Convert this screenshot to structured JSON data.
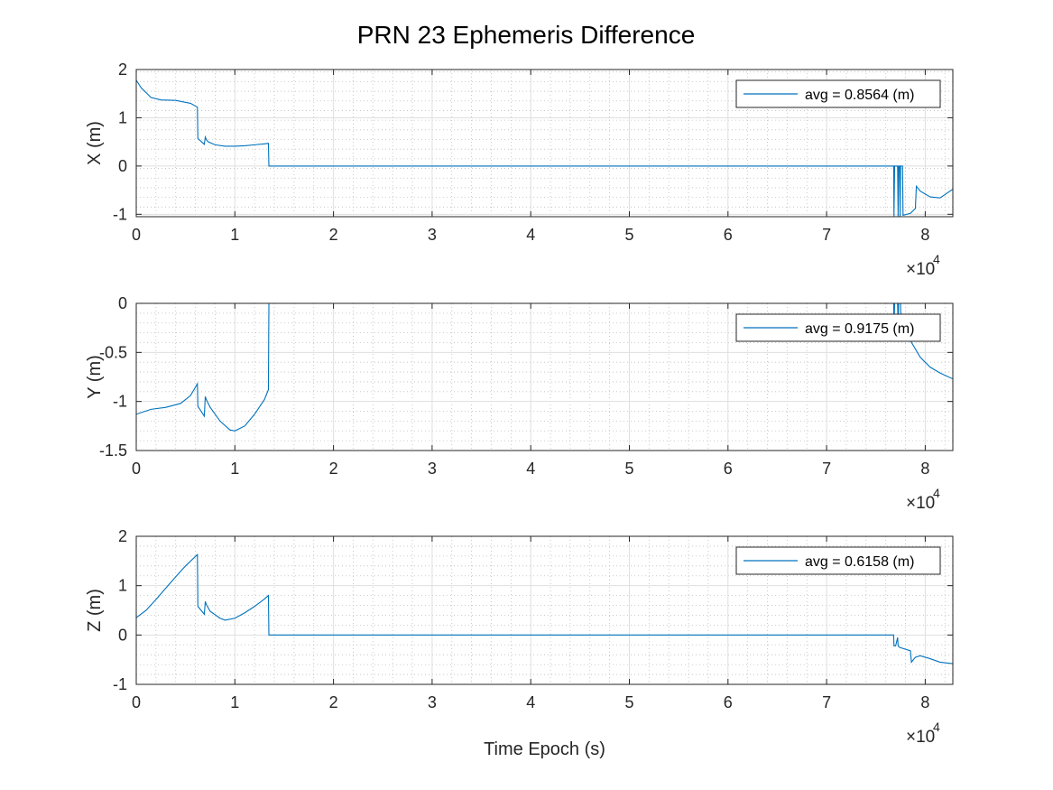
{
  "title": "PRN 23 Ephemeris Difference",
  "colors": {
    "line": "#0072bd",
    "axis": "#262626",
    "grid_major": "#dfdfdf",
    "grid_minor": "#bdbdbd"
  },
  "chart_data": [
    {
      "type": "line",
      "ylabel": "X (m)",
      "xlabel": "",
      "xlim": [
        0,
        82800
      ],
      "ylim": [
        -1.05,
        2
      ],
      "x_ticks": [
        0,
        10000,
        20000,
        30000,
        40000,
        50000,
        60000,
        70000,
        80000
      ],
      "x_tick_labels": [
        "0",
        "1",
        "2",
        "3",
        "4",
        "5",
        "6",
        "7",
        "8"
      ],
      "x_exponent": "×10",
      "x_exponent_power": "4",
      "y_ticks": [
        -1,
        0,
        1,
        2
      ],
      "y_tick_labels": [
        "-1",
        "0",
        "1",
        "2"
      ],
      "grid": true,
      "legend_position": "top-right",
      "series": [
        {
          "name": "avg = 0.8564 (m)",
          "x": [
            0,
            500,
            1500,
            2500,
            4000,
            5500,
            6200,
            6250,
            6900,
            7000,
            7100,
            7300,
            8000,
            9000,
            10000,
            11000,
            12000,
            13000,
            13400,
            13450,
            76800,
            76830,
            76900,
            77200,
            77250,
            77300,
            77400,
            77450,
            77500,
            77700,
            77750,
            78500,
            79000,
            79100,
            79500,
            80500,
            81500,
            82800
          ],
          "y": [
            1.78,
            1.62,
            1.42,
            1.37,
            1.36,
            1.3,
            1.22,
            0.57,
            0.45,
            0.6,
            0.55,
            0.5,
            0.44,
            0.41,
            0.41,
            0.42,
            0.44,
            0.46,
            0.47,
            0,
            0,
            -1.05,
            0,
            0,
            -1.05,
            0,
            0,
            -1.05,
            0,
            0,
            -1.02,
            -0.98,
            -0.88,
            -0.42,
            -0.52,
            -0.64,
            -0.66,
            -0.48
          ]
        }
      ]
    },
    {
      "type": "line",
      "ylabel": "Y (m)",
      "xlabel": "",
      "xlim": [
        0,
        82800
      ],
      "ylim": [
        -1.5,
        0
      ],
      "x_ticks": [
        0,
        10000,
        20000,
        30000,
        40000,
        50000,
        60000,
        70000,
        80000
      ],
      "x_tick_labels": [
        "0",
        "1",
        "2",
        "3",
        "4",
        "5",
        "6",
        "7",
        "8"
      ],
      "x_exponent": "×10",
      "x_exponent_power": "4",
      "y_ticks": [
        -1.5,
        -1,
        -0.5,
        0
      ],
      "y_tick_labels": [
        "-1.5",
        "-1",
        "-0.5",
        "0"
      ],
      "grid": true,
      "legend_position": "top-right",
      "series": [
        {
          "name": "avg = 0.9175 (m)",
          "x": [
            0,
            1500,
            3000,
            4500,
            5500,
            6200,
            6250,
            6900,
            7000,
            7100,
            7500,
            8500,
            9500,
            10000,
            11000,
            12000,
            13000,
            13400,
            13450,
            76800,
            76830,
            76900,
            77200,
            77250,
            77300,
            77500,
            77550,
            78500,
            79500,
            80500,
            81500,
            82800
          ],
          "y": [
            -1.13,
            -1.08,
            -1.06,
            -1.02,
            -0.94,
            -0.82,
            -1.05,
            -1.15,
            -0.95,
            -0.98,
            -1.06,
            -1.2,
            -1.29,
            -1.3,
            -1.25,
            -1.13,
            -0.98,
            -0.88,
            0,
            0,
            -0.25,
            0,
            0,
            -0.3,
            0,
            0,
            -0.35,
            -0.38,
            -0.55,
            -0.65,
            -0.71,
            -0.77
          ]
        }
      ]
    },
    {
      "type": "line",
      "ylabel": "Z (m)",
      "xlabel": "Time Epoch (s)",
      "xlim": [
        0,
        82800
      ],
      "ylim": [
        -1,
        2
      ],
      "x_ticks": [
        0,
        10000,
        20000,
        30000,
        40000,
        50000,
        60000,
        70000,
        80000
      ],
      "x_tick_labels": [
        "0",
        "1",
        "2",
        "3",
        "4",
        "5",
        "6",
        "7",
        "8"
      ],
      "x_exponent": "×10",
      "x_exponent_power": "4",
      "y_ticks": [
        -1,
        0,
        1,
        2
      ],
      "y_tick_labels": [
        "-1",
        "0",
        "1",
        "2"
      ],
      "grid": true,
      "legend_position": "top-right",
      "series": [
        {
          "name": "avg = 0.6158 (m)",
          "x": [
            0,
            1000,
            2000,
            3000,
            4000,
            5000,
            6200,
            6250,
            6900,
            7000,
            7100,
            7500,
            8500,
            9000,
            10000,
            11000,
            12000,
            13000,
            13400,
            13450,
            76800,
            76830,
            77000,
            77200,
            77250,
            77400,
            78500,
            78600,
            79000,
            79500,
            80500,
            81500,
            82800
          ],
          "y": [
            0.35,
            0.5,
            0.72,
            0.95,
            1.18,
            1.4,
            1.63,
            0.58,
            0.42,
            0.68,
            0.62,
            0.48,
            0.34,
            0.3,
            0.34,
            0.45,
            0.58,
            0.73,
            0.8,
            0,
            0,
            -0.22,
            -0.22,
            -0.05,
            -0.22,
            -0.25,
            -0.32,
            -0.55,
            -0.45,
            -0.42,
            -0.48,
            -0.55,
            -0.58
          ]
        }
      ]
    }
  ]
}
